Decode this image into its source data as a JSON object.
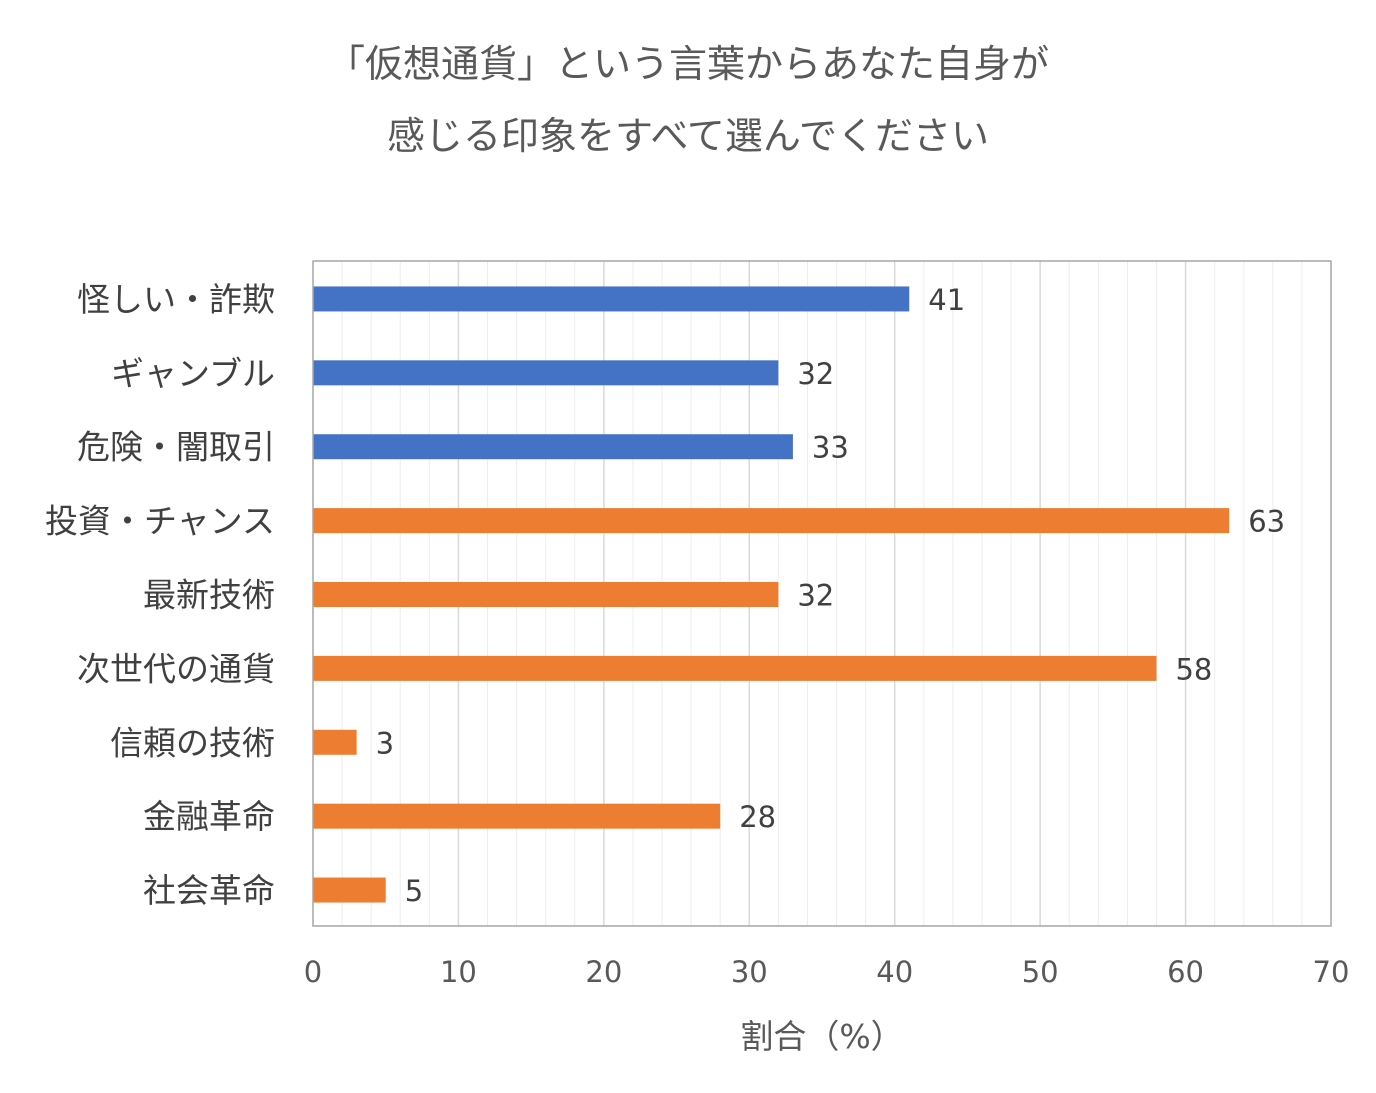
{
  "chart_data": {
    "type": "bar",
    "orientation": "horizontal",
    "title": [
      "「仮想通貨」という言葉からあなた自身が",
      "感じる印象をすべて選んでください"
    ],
    "xlabel": "割合（%）",
    "ylabel": "",
    "xlim": [
      0,
      70
    ],
    "major_ticks": [
      0,
      10,
      20,
      30,
      40,
      50,
      60,
      70
    ],
    "minor_tick_step": 2,
    "grid": true,
    "legend": "none",
    "categories": [
      "怪しい・詐欺",
      "ギャンブル",
      "危険・闇取引",
      "投資・チャンス",
      "最新技術",
      "次世代の通貨",
      "信頼の技術",
      "金融革命",
      "社会革命"
    ],
    "values": [
      41,
      32,
      33,
      63,
      32,
      58,
      3,
      28,
      5
    ],
    "bar_colors": [
      "#4472C4",
      "#4472C4",
      "#4472C4",
      "#ED7D31",
      "#ED7D31",
      "#ED7D31",
      "#ED7D31",
      "#ED7D31",
      "#ED7D31"
    ],
    "colors": {
      "negative_group": "#4472C4",
      "positive_group": "#ED7D31",
      "gridline": "#D9D9D9",
      "minor_gridline": "#EDEDED",
      "frame": "#A6A6A6"
    }
  }
}
